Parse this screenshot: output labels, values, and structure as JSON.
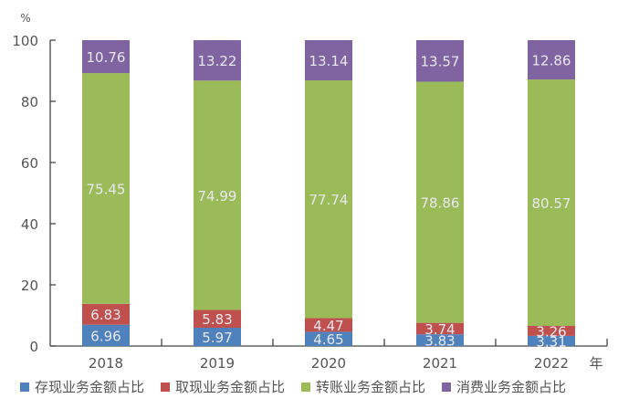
{
  "chart_data": {
    "type": "bar",
    "stacked": true,
    "title": "",
    "ylabel": "%",
    "xlabel": "年",
    "ylim": [
      0,
      100
    ],
    "yticks": [
      0,
      20,
      40,
      60,
      80,
      100
    ],
    "grid": false,
    "legend_position": "bottom",
    "categories": [
      "2018",
      "2019",
      "2020",
      "2021",
      "2022"
    ],
    "series": [
      {
        "name": "存现业务金额占比",
        "color": "#4f81bd",
        "values": [
          6.96,
          5.97,
          4.65,
          3.83,
          3.31
        ]
      },
      {
        "name": "取现业务金额占比",
        "color": "#c0504d",
        "values": [
          6.83,
          5.83,
          4.47,
          3.74,
          3.26
        ]
      },
      {
        "name": "转账业务金额占比",
        "color": "#9bbb59",
        "values": [
          75.45,
          74.99,
          77.74,
          78.86,
          80.57
        ]
      },
      {
        "name": "消费业务金额占比",
        "color": "#8064a2",
        "values": [
          10.76,
          13.22,
          13.14,
          13.57,
          12.86
        ]
      }
    ]
  }
}
